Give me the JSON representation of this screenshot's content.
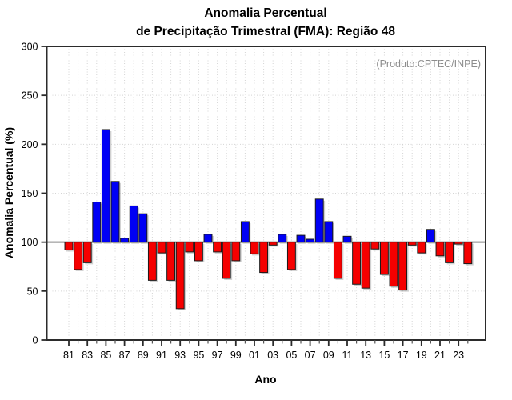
{
  "window": {
    "background": "#ffffff"
  },
  "title": {
    "line1": "Anomalia Percentual",
    "line2": "de Precipitação Trimestral (FMA): Região 48"
  },
  "annotation": "(Produto:CPTEC/INPE)",
  "chart_data": {
    "type": "bar",
    "title": "Anomalia Percentual de Precipitação Trimestral (FMA): Região 48",
    "xlabel": "Ano",
    "ylabel": "Anomalia Percentual (%)",
    "ylim": [
      0,
      300
    ],
    "yticks": [
      0,
      50,
      100,
      150,
      200,
      250,
      300
    ],
    "baseline": 100,
    "grid": true,
    "legend": "none",
    "categories": [
      "1981",
      "1982",
      "1983",
      "1984",
      "1985",
      "1986",
      "1987",
      "1988",
      "1989",
      "1990",
      "1991",
      "1992",
      "1993",
      "1994",
      "1995",
      "1996",
      "1997",
      "1998",
      "1999",
      "2000",
      "2001",
      "2002",
      "2003",
      "2004",
      "2005",
      "2006",
      "2007",
      "2008",
      "2009",
      "2010",
      "2011",
      "2012",
      "2013",
      "2014",
      "2015",
      "2016",
      "2017",
      "2018",
      "2019",
      "2020",
      "2021",
      "2022",
      "2023",
      "2024"
    ],
    "xtick_labels": [
      "81",
      "83",
      "85",
      "87",
      "89",
      "91",
      "93",
      "95",
      "97",
      "99",
      "01",
      "03",
      "05",
      "07",
      "09",
      "11",
      "13",
      "15",
      "17",
      "19",
      "21",
      "23"
    ],
    "values": [
      92,
      72,
      79,
      141,
      215,
      162,
      104,
      137,
      129,
      61,
      89,
      61,
      32,
      90,
      81,
      108,
      90,
      63,
      81,
      121,
      88,
      69,
      97,
      108,
      72,
      107,
      103,
      144,
      121,
      63,
      106,
      57,
      53,
      93,
      67,
      55,
      51,
      97,
      89,
      113,
      86,
      79,
      98,
      78
    ],
    "colors": {
      "above_baseline": "#0000f5",
      "below_baseline": "#f50000",
      "bar_outline": "#1a1a1a",
      "bar_shadow": "#aaaaaa",
      "baseline_line": "#8a8a8a",
      "grid_line": "#d4d4d4",
      "frame": "#2b2b2b"
    }
  }
}
